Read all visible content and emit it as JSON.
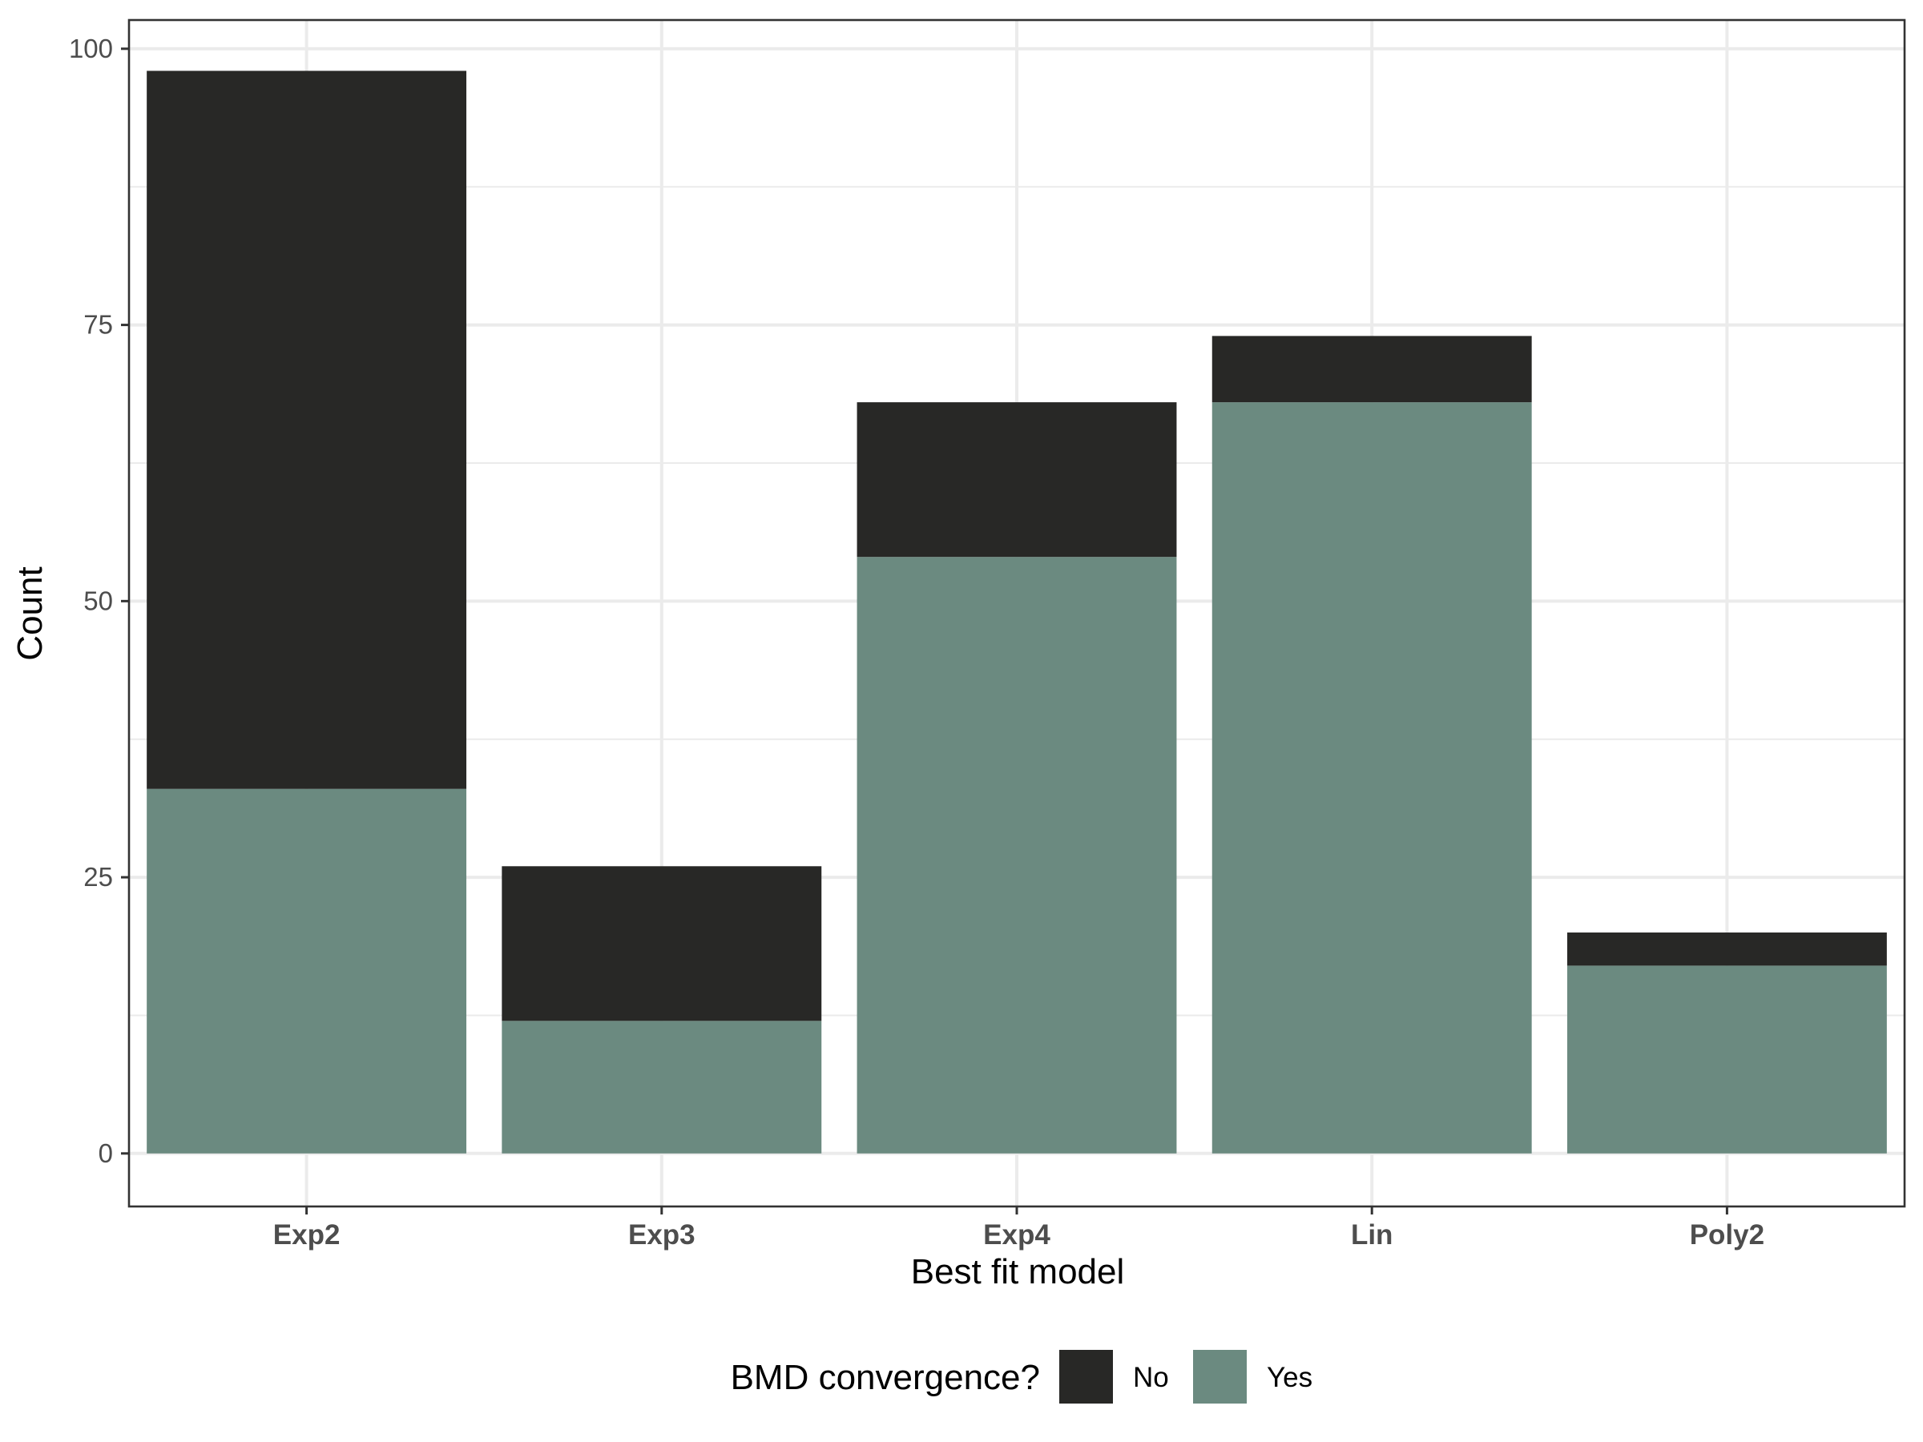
{
  "chart_data": {
    "type": "bar",
    "stacked": true,
    "categories": [
      "Exp2",
      "Exp3",
      "Exp4",
      "Lin",
      "Poly2"
    ],
    "series": [
      {
        "name": "Yes",
        "values": [
          33,
          12,
          54,
          68,
          17
        ],
        "color": "#6b8a80"
      },
      {
        "name": "No",
        "values": [
          65,
          14,
          14,
          6,
          3
        ],
        "color": "#282826"
      }
    ],
    "title": "",
    "xlabel": "Best fit model",
    "ylabel": "Count",
    "ylim": [
      -4.8,
      102.6
    ],
    "yticks": [
      0,
      25,
      50,
      75,
      100
    ],
    "grid": true,
    "legend": {
      "title": "BMD convergence?",
      "position": "bottom",
      "entries": [
        {
          "label": "No",
          "color": "#282826"
        },
        {
          "label": "Yes",
          "color": "#6b8a80"
        }
      ]
    }
  }
}
